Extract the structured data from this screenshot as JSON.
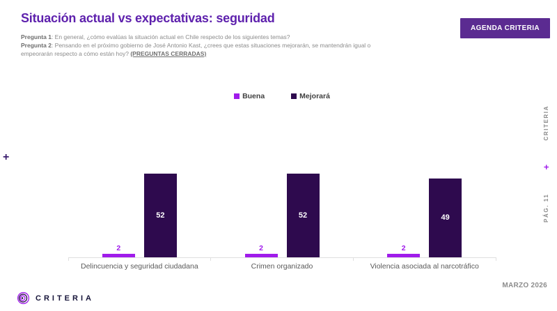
{
  "header": {
    "title": "Situación actual vs expectativas: seguridad",
    "pregunta1_label": "Pregunta 1",
    "pregunta1_text": ": En general, ¿cómo evalúas la situación actual en Chile respecto de los siguientes temas?",
    "pregunta2_label": "Pregunta 2",
    "pregunta2_text": ": Pensando en el próximo gobierno de José Antonio Kast, ¿crees que estas situaciones mejorarán, se mantendrán igual o",
    "pregunta2_cont": "empeorarán respecto a cómo están hoy? ",
    "pregunta2_closed": "(PREGUNTAS CERRADAS)",
    "agenda_button_label": "AGENDA CRITERIA"
  },
  "chart_data": {
    "type": "bar",
    "title": "Situación actual vs expectativas: seguridad",
    "categories": [
      "Delincuencia y seguridad ciudadana",
      "Crimen organizado",
      "Violencia asociada al narcotráfico"
    ],
    "series": [
      {
        "name": "Buena",
        "color": "#A01BEB",
        "values": [
          2,
          2,
          2
        ]
      },
      {
        "name": "Mejorará",
        "color": "#2E0A4E",
        "values": [
          52,
          52,
          49
        ]
      }
    ],
    "ylim": [
      0,
      55
    ],
    "grid": false,
    "legend_position": "top-center",
    "value_labels": true
  },
  "right_rail": {
    "page_label": "PÁG. 11",
    "plus": "+",
    "brand": "CRITERIA"
  },
  "decor": {
    "left_plus": "+"
  },
  "footer": {
    "brand": "CRITERIA",
    "date_label": "MARZO 2026"
  },
  "colors": {
    "title_purple": "#5E21AD",
    "button_purple": "#5B2B91",
    "series_buena": "#A01BEB",
    "series_mejorara": "#2E0A4E",
    "axis_gray": "#DFDFDF"
  }
}
